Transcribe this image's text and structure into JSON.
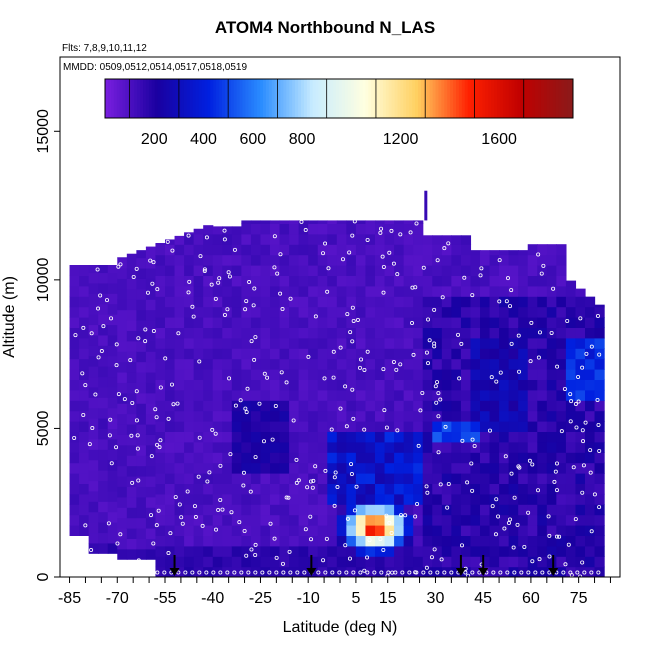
{
  "chart_data": {
    "type": "heatmap",
    "title": "ATOM4 Northbound N_LAS",
    "flights_note": "Flts: 7,8,9,10,11,12",
    "mmdd_note": "MMDD: 0509,0512,0514,0517,0518,0519",
    "xlabel": "Latitude (deg N)",
    "ylabel": "Altitude (m)",
    "xlim": [
      -88,
      88
    ],
    "ylim": [
      0,
      17500
    ],
    "x_ticks": [
      "-85",
      "-70",
      "-55",
      "-40",
      "-25",
      "-10",
      "5",
      "15",
      "30",
      "45",
      "60",
      "75"
    ],
    "x_tick_values": [
      -85,
      -70,
      -55,
      -40,
      -25,
      -10,
      5,
      15,
      30,
      45,
      60,
      75
    ],
    "y_ticks": [
      "0",
      "5000",
      "10000",
      "15000"
    ],
    "y_tick_values": [
      0,
      5000,
      10000,
      15000
    ],
    "colorbar": {
      "ticks": [
        "200",
        "400",
        "600",
        "800",
        "1200",
        "1600"
      ],
      "tick_values": [
        200,
        400,
        600,
        800,
        1200,
        1600
      ],
      "min": 0,
      "max": 1900,
      "colors": [
        "#7a1fe0",
        "#1a00a0",
        "#0020e0",
        "#2a8cff",
        "#c8ecff",
        "#ffffe0",
        "#ffd060",
        "#ff2000",
        "#c00000",
        "#8a1a1a"
      ]
    },
    "flight_arrows_lat": [
      -52,
      -9,
      38,
      45,
      67
    ],
    "grid": false,
    "legend": "colorbar-top"
  }
}
